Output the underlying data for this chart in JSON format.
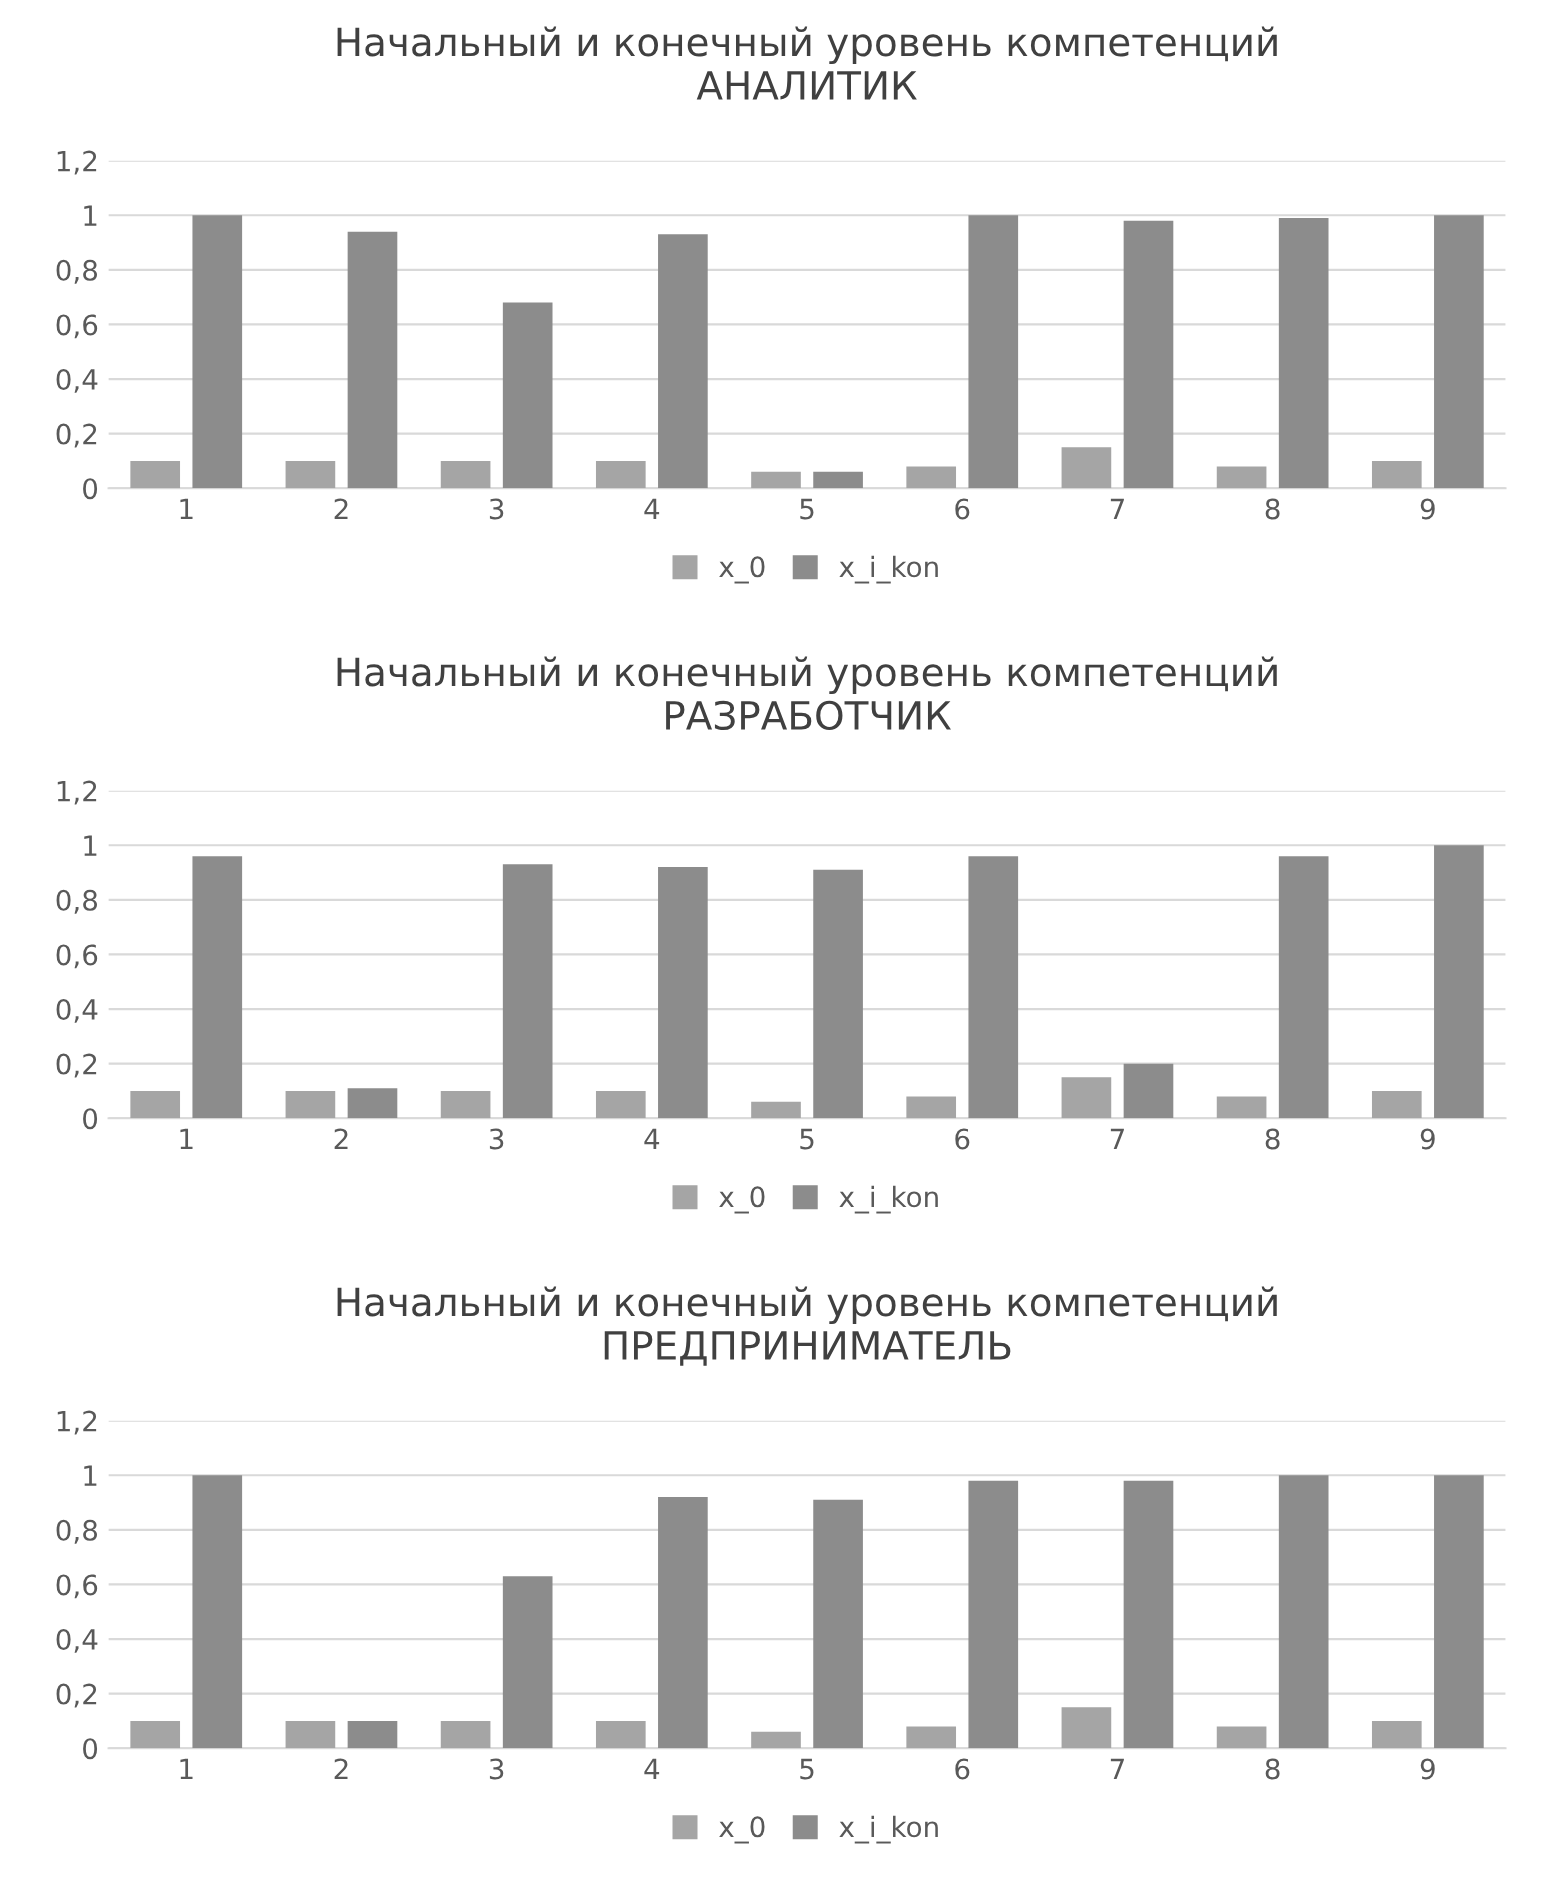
{
  "chart_data": [
    {
      "type": "bar",
      "title": "Начальный и конечный уровень компетенций\nАНАЛИТИК",
      "categories": [
        "1",
        "2",
        "3",
        "4",
        "5",
        "6",
        "7",
        "8",
        "9"
      ],
      "series": [
        {
          "name": "x_0",
          "color": "#a5a5a5",
          "values": [
            0.1,
            0.1,
            0.1,
            0.1,
            0.06,
            0.08,
            0.15,
            0.08,
            0.1
          ]
        },
        {
          "name": "x_i_kon",
          "color": "#8c8c8c",
          "values": [
            1,
            0.94,
            0.68,
            0.93,
            0.06,
            1,
            0.98,
            0.99,
            1
          ]
        }
      ],
      "ylim": [
        0,
        1.2
      ],
      "yticks": [
        0,
        {
          "value": 0.2,
          "label": "0,2"
        },
        {
          "value": 0.4,
          "label": "0,4"
        },
        {
          "value": 0.6,
          "label": "0,6"
        },
        {
          "value": 0.8,
          "label": "0,8"
        },
        1,
        {
          "value": 1.2,
          "label": "1,2"
        }
      ],
      "grid": "y",
      "legend": "bottom"
    },
    {
      "type": "bar",
      "title": "Начальный и конечный уровень компетенций\nРАЗРАБОТЧИК",
      "categories": [
        "1",
        "2",
        "3",
        "4",
        "5",
        "6",
        "7",
        "8",
        "9"
      ],
      "series": [
        {
          "name": "x_0",
          "color": "#a5a5a5",
          "values": [
            0.1,
            0.1,
            0.1,
            0.1,
            0.06,
            0.08,
            0.15,
            0.08,
            0.1
          ]
        },
        {
          "name": "x_i_kon",
          "color": "#8c8c8c",
          "values": [
            0.96,
            0.11,
            0.93,
            0.92,
            0.91,
            0.96,
            0.2,
            0.96,
            1
          ]
        }
      ],
      "ylim": [
        0,
        1.2
      ],
      "yticks": [
        0,
        {
          "value": 0.2,
          "label": "0,2"
        },
        {
          "value": 0.4,
          "label": "0,4"
        },
        {
          "value": 0.6,
          "label": "0,6"
        },
        {
          "value": 0.8,
          "label": "0,8"
        },
        1,
        {
          "value": 1.2,
          "label": "1,2"
        }
      ],
      "grid": "y",
      "legend": "bottom"
    },
    {
      "type": "bar",
      "title": "Начальный и конечный уровень компетенций\nПРЕДПРИНИМАТЕЛЬ",
      "categories": [
        "1",
        "2",
        "3",
        "4",
        "5",
        "6",
        "7",
        "8",
        "9"
      ],
      "series": [
        {
          "name": "x_0",
          "color": "#a5a5a5",
          "values": [
            0.1,
            0.1,
            0.1,
            0.1,
            0.06,
            0.08,
            0.15,
            0.08,
            0.1
          ]
        },
        {
          "name": "x_i_kon",
          "color": "#8c8c8c",
          "values": [
            1,
            0.1,
            0.63,
            0.92,
            0.91,
            0.98,
            0.98,
            1,
            1
          ]
        }
      ],
      "ylim": [
        0,
        1.2
      ],
      "yticks": [
        0,
        {
          "value": 0.2,
          "label": "0,2"
        },
        {
          "value": 0.4,
          "label": "0,4"
        },
        {
          "value": 0.6,
          "label": "0,6"
        },
        {
          "value": 0.8,
          "label": "0,8"
        },
        1,
        {
          "value": 1.2,
          "label": "1,2"
        }
      ],
      "grid": "y",
      "legend": "bottom"
    }
  ]
}
